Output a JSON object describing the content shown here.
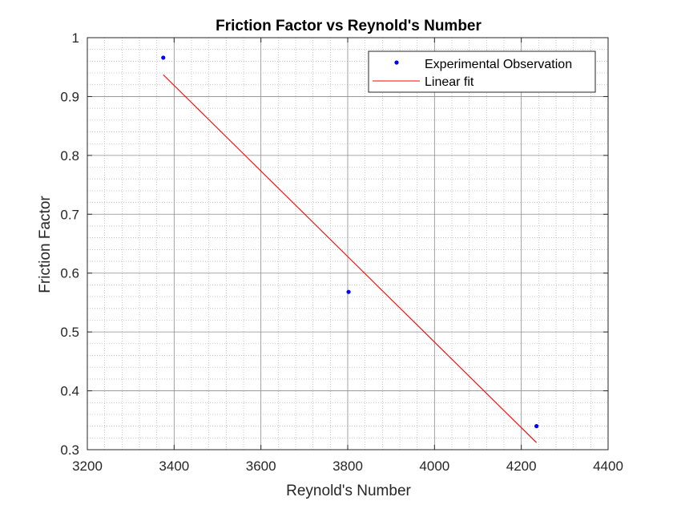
{
  "chart_data": {
    "type": "scatter",
    "title": "Friction Factor vs Reynold's Number",
    "xlabel": "Reynold's Number",
    "ylabel": "Friction Factor",
    "xlim": [
      3200,
      4400
    ],
    "ylim": [
      0.3,
      1.0
    ],
    "xticks": [
      "3200",
      "3400",
      "3600",
      "3800",
      "4000",
      "4200",
      "4400"
    ],
    "yticks": [
      "0.3",
      "0.4",
      "0.5",
      "0.6",
      "0.7",
      "0.8",
      "0.9",
      "1"
    ],
    "grid": true,
    "minor_grid": true,
    "legend_position": "top-right",
    "series": [
      {
        "name": "Experimental Observation",
        "kind": "scatter",
        "color": "#0000ff",
        "marker": "dot",
        "points": [
          {
            "x": 3375,
            "y": 0.966
          },
          {
            "x": 3802,
            "y": 0.568
          },
          {
            "x": 4235,
            "y": 0.34
          }
        ]
      },
      {
        "name": "Linear fit",
        "kind": "line",
        "color": "#ff0000",
        "points": [
          {
            "x": 3375,
            "y": 0.937
          },
          {
            "x": 4235,
            "y": 0.312
          }
        ]
      }
    ]
  }
}
